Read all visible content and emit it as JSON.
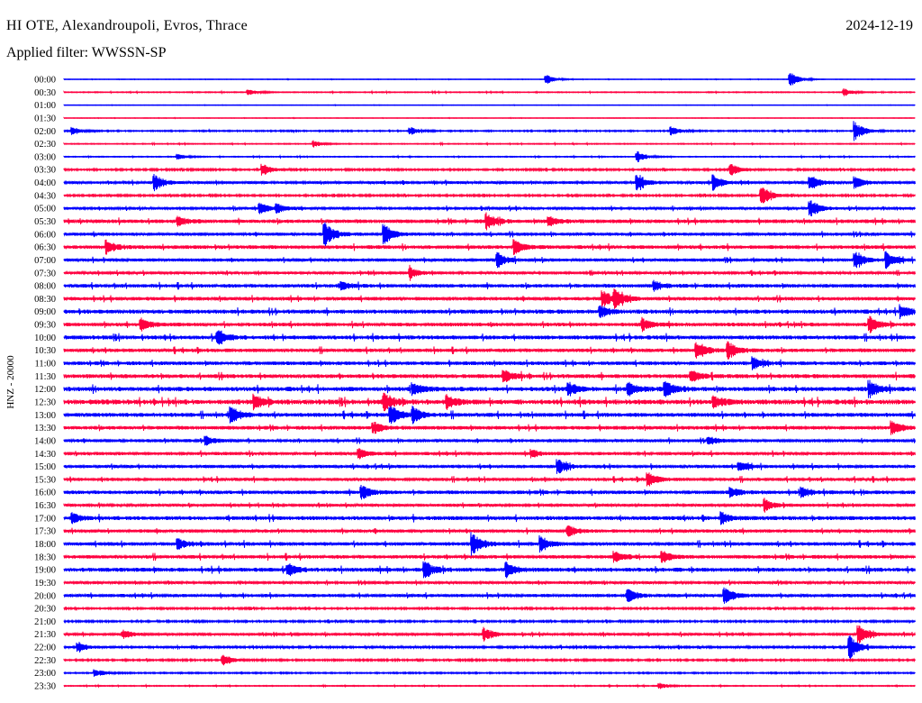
{
  "header": {
    "station": "HI OTE, Alexandroupoli, Evros, Thrace",
    "date": "2024-12-19",
    "filter": "Applied filter: WWSSN-SP"
  },
  "chart_data": {
    "type": "helicorder",
    "title": "HI OTE, Alexandroupoli, Evros, Thrace",
    "ylabel": "HNZ - 20000",
    "minutes_per_row": 30,
    "colors": [
      "#0000ff",
      "#ff0040"
    ],
    "rows": [
      {
        "label": "00:00",
        "noise": 0.05,
        "events": [
          [
            17,
            0.5
          ],
          [
            25.6,
            0.8
          ]
        ]
      },
      {
        "label": "00:30",
        "noise": 0.1,
        "events": [
          [
            6.5,
            0.3
          ],
          [
            27.5,
            0.4
          ]
        ]
      },
      {
        "label": "01:00",
        "noise": 0.05,
        "events": []
      },
      {
        "label": "01:30",
        "noise": 0.05,
        "events": []
      },
      {
        "label": "02:00",
        "noise": 0.15,
        "events": [
          [
            0.3,
            0.4
          ],
          [
            12.2,
            0.4
          ],
          [
            21.4,
            0.5
          ],
          [
            27.9,
            1.0
          ]
        ]
      },
      {
        "label": "02:30",
        "noise": 0.1,
        "events": [
          [
            8.8,
            0.3
          ]
        ]
      },
      {
        "label": "03:00",
        "noise": 0.1,
        "events": [
          [
            4,
            0.3
          ],
          [
            20.2,
            0.6
          ]
        ]
      },
      {
        "label": "03:30",
        "noise": 0.2,
        "events": [
          [
            7,
            0.6
          ],
          [
            23.5,
            0.7
          ]
        ]
      },
      {
        "label": "04:00",
        "noise": 0.3,
        "events": [
          [
            3.2,
            0.8
          ],
          [
            20.2,
            0.9
          ],
          [
            22.9,
            0.8
          ],
          [
            26.3,
            0.8
          ],
          [
            27.9,
            0.6
          ]
        ]
      },
      {
        "label": "04:30",
        "noise": 0.2,
        "events": [
          [
            24.6,
            1.0
          ]
        ]
      },
      {
        "label": "05:00",
        "noise": 0.3,
        "events": [
          [
            6.9,
            0.6
          ],
          [
            7.5,
            0.4
          ],
          [
            26.3,
            0.9
          ]
        ]
      },
      {
        "label": "05:30",
        "noise": 0.4,
        "events": [
          [
            4,
            0.5
          ],
          [
            14.9,
            0.8
          ],
          [
            17.1,
            0.5
          ]
        ]
      },
      {
        "label": "06:00",
        "noise": 0.35,
        "events": [
          [
            9.2,
            1.2
          ],
          [
            11.3,
            1.0
          ]
        ]
      },
      {
        "label": "06:30",
        "noise": 0.4,
        "events": [
          [
            1.5,
            0.7
          ],
          [
            15.9,
            0.7
          ]
        ]
      },
      {
        "label": "07:00",
        "noise": 0.35,
        "events": [
          [
            15.3,
            0.7
          ],
          [
            27.9,
            0.8
          ],
          [
            29,
            0.8
          ]
        ]
      },
      {
        "label": "07:30",
        "noise": 0.3,
        "events": [
          [
            12.2,
            0.6
          ]
        ]
      },
      {
        "label": "08:00",
        "noise": 0.4,
        "events": [
          [
            9.8,
            0.4
          ],
          [
            20.8,
            0.5
          ]
        ]
      },
      {
        "label": "08:30",
        "noise": 0.4,
        "events": [
          [
            19,
            0.8
          ],
          [
            19.4,
            0.8
          ]
        ]
      },
      {
        "label": "09:00",
        "noise": 0.45,
        "events": [
          [
            18.9,
            0.6
          ],
          [
            29.5,
            0.7
          ]
        ]
      },
      {
        "label": "09:30",
        "noise": 0.4,
        "events": [
          [
            2.7,
            0.6
          ],
          [
            20.4,
            0.6
          ],
          [
            28.4,
            0.8
          ]
        ]
      },
      {
        "label": "10:00",
        "noise": 0.45,
        "events": [
          [
            5.4,
            0.8
          ]
        ]
      },
      {
        "label": "10:30",
        "noise": 0.4,
        "events": [
          [
            22.3,
            0.9
          ],
          [
            23.4,
            0.9
          ]
        ]
      },
      {
        "label": "11:00",
        "noise": 0.4,
        "events": [
          [
            24.3,
            0.6
          ]
        ]
      },
      {
        "label": "11:30",
        "noise": 0.45,
        "events": [
          [
            15.5,
            0.7
          ],
          [
            22.1,
            0.6
          ]
        ]
      },
      {
        "label": "12:00",
        "noise": 0.5,
        "events": [
          [
            12.3,
            0.6
          ],
          [
            17.8,
            0.6
          ],
          [
            19.9,
            0.7
          ],
          [
            21.2,
            0.9
          ],
          [
            28.4,
            0.8
          ]
        ]
      },
      {
        "label": "12:30",
        "noise": 0.55,
        "events": [
          [
            6.7,
            0.7
          ],
          [
            11.3,
            0.9
          ],
          [
            13.5,
            0.6
          ],
          [
            22.9,
            0.6
          ]
        ]
      },
      {
        "label": "13:00",
        "noise": 0.45,
        "events": [
          [
            5.9,
            0.9
          ],
          [
            11.5,
            1.0
          ],
          [
            12.3,
            0.7
          ]
        ]
      },
      {
        "label": "13:30",
        "noise": 0.4,
        "events": [
          [
            10.9,
            0.6
          ],
          [
            29.2,
            0.7
          ]
        ]
      },
      {
        "label": "14:00",
        "noise": 0.35,
        "events": [
          [
            5,
            0.4
          ],
          [
            22.7,
            0.4
          ]
        ]
      },
      {
        "label": "14:30",
        "noise": 0.35,
        "events": [
          [
            10.4,
            0.5
          ],
          [
            16.5,
            0.4
          ]
        ]
      },
      {
        "label": "15:00",
        "noise": 0.35,
        "events": [
          [
            17.4,
            0.7
          ],
          [
            23.8,
            0.5
          ]
        ]
      },
      {
        "label": "15:30",
        "noise": 0.35,
        "events": [
          [
            20.6,
            0.7
          ]
        ]
      },
      {
        "label": "16:00",
        "noise": 0.4,
        "events": [
          [
            10.5,
            0.7
          ],
          [
            23.5,
            0.5
          ],
          [
            26,
            0.5
          ]
        ]
      },
      {
        "label": "16:30",
        "noise": 0.3,
        "events": [
          [
            24.7,
            0.7
          ]
        ]
      },
      {
        "label": "17:00",
        "noise": 0.45,
        "events": [
          [
            0.3,
            0.5
          ],
          [
            23.2,
            0.6
          ]
        ]
      },
      {
        "label": "17:30",
        "noise": 0.35,
        "events": [
          [
            17.8,
            0.5
          ]
        ]
      },
      {
        "label": "18:00",
        "noise": 0.4,
        "events": [
          [
            4,
            0.6
          ],
          [
            14.4,
            1.2
          ],
          [
            16.8,
            0.8
          ]
        ]
      },
      {
        "label": "18:30",
        "noise": 0.4,
        "events": [
          [
            19.4,
            0.6
          ],
          [
            21.1,
            0.6
          ]
        ]
      },
      {
        "label": "19:00",
        "noise": 0.45,
        "events": [
          [
            7.9,
            0.5
          ],
          [
            12.7,
            0.9
          ],
          [
            15.6,
            0.7
          ]
        ]
      },
      {
        "label": "19:30",
        "noise": 0.3,
        "events": []
      },
      {
        "label": "20:00",
        "noise": 0.35,
        "events": [
          [
            19.9,
            0.7
          ],
          [
            23.3,
            0.8
          ]
        ]
      },
      {
        "label": "20:30",
        "noise": 0.2,
        "events": []
      },
      {
        "label": "21:00",
        "noise": 0.2,
        "events": []
      },
      {
        "label": "21:30",
        "noise": 0.3,
        "events": [
          [
            2.1,
            0.4
          ],
          [
            14.8,
            0.7
          ],
          [
            28,
            1.0
          ]
        ]
      },
      {
        "label": "22:00",
        "noise": 0.25,
        "events": [
          [
            0.5,
            0.5
          ],
          [
            27.7,
            1.2
          ]
        ]
      },
      {
        "label": "22:30",
        "noise": 0.2,
        "events": [
          [
            5.6,
            0.6
          ]
        ]
      },
      {
        "label": "23:00",
        "noise": 0.15,
        "events": [
          [
            1.1,
            0.4
          ]
        ]
      },
      {
        "label": "23:30",
        "noise": 0.1,
        "events": [
          [
            21,
            0.3
          ]
        ]
      }
    ]
  }
}
